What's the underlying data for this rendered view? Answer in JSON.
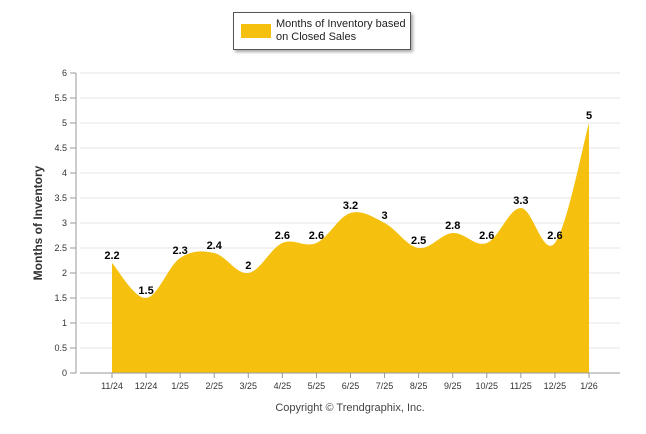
{
  "chart_data": {
    "type": "area",
    "title": "",
    "legend": {
      "label": "Months of Inventory based on Closed Sales",
      "position": "top-center"
    },
    "ylabel": "Months of Inventory",
    "xlabel": "",
    "categories": [
      "11/24",
      "12/24",
      "1/25",
      "2/25",
      "3/25",
      "4/25",
      "5/25",
      "6/25",
      "7/25",
      "8/25",
      "9/25",
      "10/25",
      "11/25",
      "12/25",
      "1/26"
    ],
    "values": [
      2.2,
      1.5,
      2.3,
      2.4,
      2,
      2.6,
      2.6,
      3.2,
      3,
      2.5,
      2.8,
      2.6,
      3.3,
      2.6,
      5
    ],
    "data_labels": [
      "2.2",
      "1.5",
      "2.3",
      "2.4",
      "2",
      "2.6",
      "2.6",
      "3.2",
      "3",
      "2.5",
      "2.8",
      "2.6",
      "3.3",
      "2.6",
      "5"
    ],
    "yticks": [
      "0",
      "0.5",
      "1",
      "1.5",
      "2",
      "2.5",
      "3",
      "3.5",
      "4",
      "4.5",
      "5",
      "5.5",
      "6"
    ],
    "ylim": [
      0,
      6
    ],
    "grid": true,
    "color": "#F5C10E"
  },
  "footer": {
    "copyright": "Copyright © Trendgraphix, Inc."
  }
}
